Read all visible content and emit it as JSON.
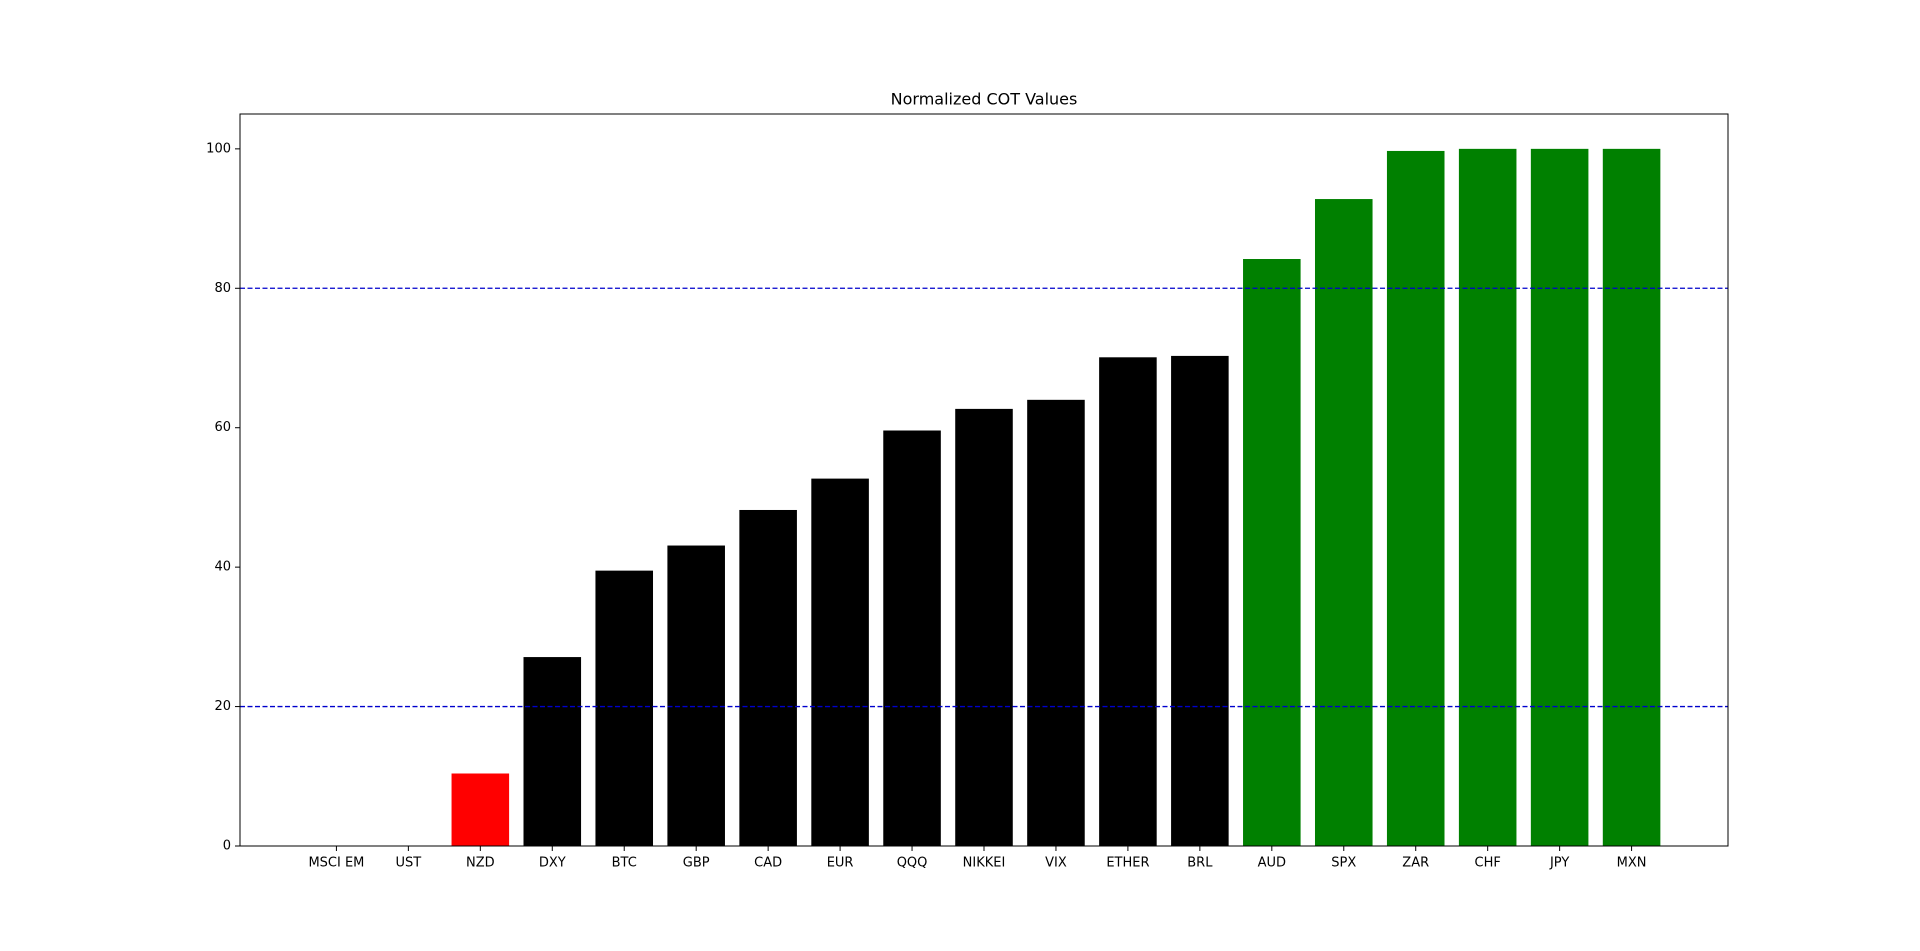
{
  "chart_data": {
    "type": "bar",
    "title": "Normalized COT Values",
    "categories": [
      "MSCI EM",
      "UST",
      "NZD",
      "DXY",
      "BTC",
      "GBP",
      "CAD",
      "EUR",
      "QQQ",
      "NIKKEI",
      "VIX",
      "ETHER",
      "BRL",
      "AUD",
      "SPX",
      "ZAR",
      "CHF",
      "JPY",
      "MXN"
    ],
    "values": [
      0,
      0,
      10.4,
      27.1,
      39.5,
      43.1,
      48.2,
      52.7,
      59.6,
      62.7,
      64.0,
      70.1,
      70.3,
      84.2,
      92.8,
      99.7,
      100,
      100,
      100
    ],
    "colors": [
      "#ff0000",
      "#ff0000",
      "#ff0000",
      "#000000",
      "#000000",
      "#000000",
      "#000000",
      "#000000",
      "#000000",
      "#000000",
      "#000000",
      "#000000",
      "#000000",
      "#008000",
      "#008000",
      "#008000",
      "#008000",
      "#008000",
      "#008000"
    ],
    "ylim": [
      0,
      105
    ],
    "yticks": [
      0,
      20,
      40,
      60,
      80,
      100
    ],
    "reference_lines": [
      20,
      80
    ],
    "reference_color": "#0000cc"
  }
}
